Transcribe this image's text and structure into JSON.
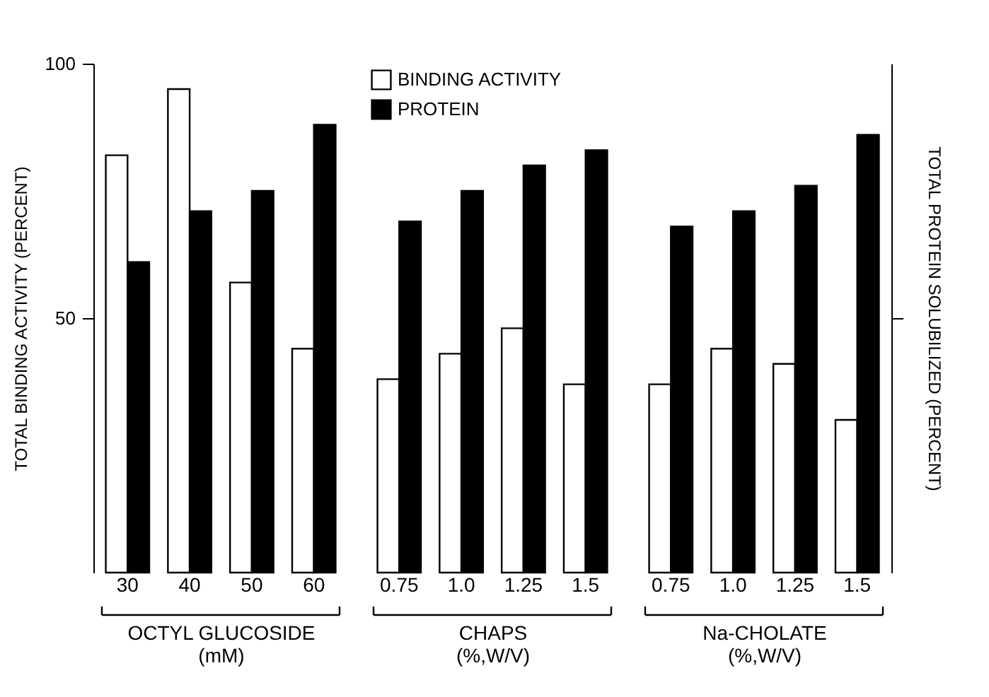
{
  "chart_data": [
    {
      "type": "bar",
      "ylabel": "TOTAL BINDING ACTIVITY (PERCENT)",
      "xlabel": "OCTYL GLUCOSIDE\n(mM)",
      "categories": [
        "30",
        "40",
        "50",
        "60"
      ],
      "ylim": [
        0,
        100
      ],
      "yticks": [
        50,
        100
      ],
      "series": [
        {
          "color": "#ffffff",
          "values": [
            82,
            95,
            57,
            44
          ]
        },
        {
          "color": "#000000",
          "values": [
            61,
            71,
            75,
            88
          ]
        }
      ]
    },
    {
      "type": "bar",
      "xlabel": "CHAPS\n(%,W/V)",
      "categories": [
        "0.75",
        "1.0",
        "1.25",
        "1.5"
      ],
      "ylim": [
        0,
        100
      ],
      "tick_labels": "x",
      "legend": "top left",
      "series": [
        {
          "name": "BINDING ACTIVITY",
          "color": "#ffffff",
          "values": [
            38,
            43,
            48,
            37
          ]
        },
        {
          "name": "PROTEIN",
          "color": "#000000",
          "values": [
            69,
            75,
            80,
            83
          ]
        }
      ]
    },
    {
      "type": "bar",
      "xlabel": "Na-CHOLATE\n(%,W/V)",
      "y2label": "TOTAL PROTEIN SOLUBILIZED (PERCENT)",
      "categories": [
        "0.75",
        "1.0",
        "1.25",
        "1.5"
      ],
      "ylim": [
        0,
        100
      ],
      "yticks": [
        {
          "value": 50,
          "label": null
        }
      ],
      "tick_labels": "x",
      "series": [
        {
          "color": "#ffffff",
          "values": [
            37,
            44,
            41,
            30
          ]
        },
        {
          "color": "#000000",
          "values": [
            68,
            71,
            76,
            86
          ]
        }
      ]
    }
  ]
}
